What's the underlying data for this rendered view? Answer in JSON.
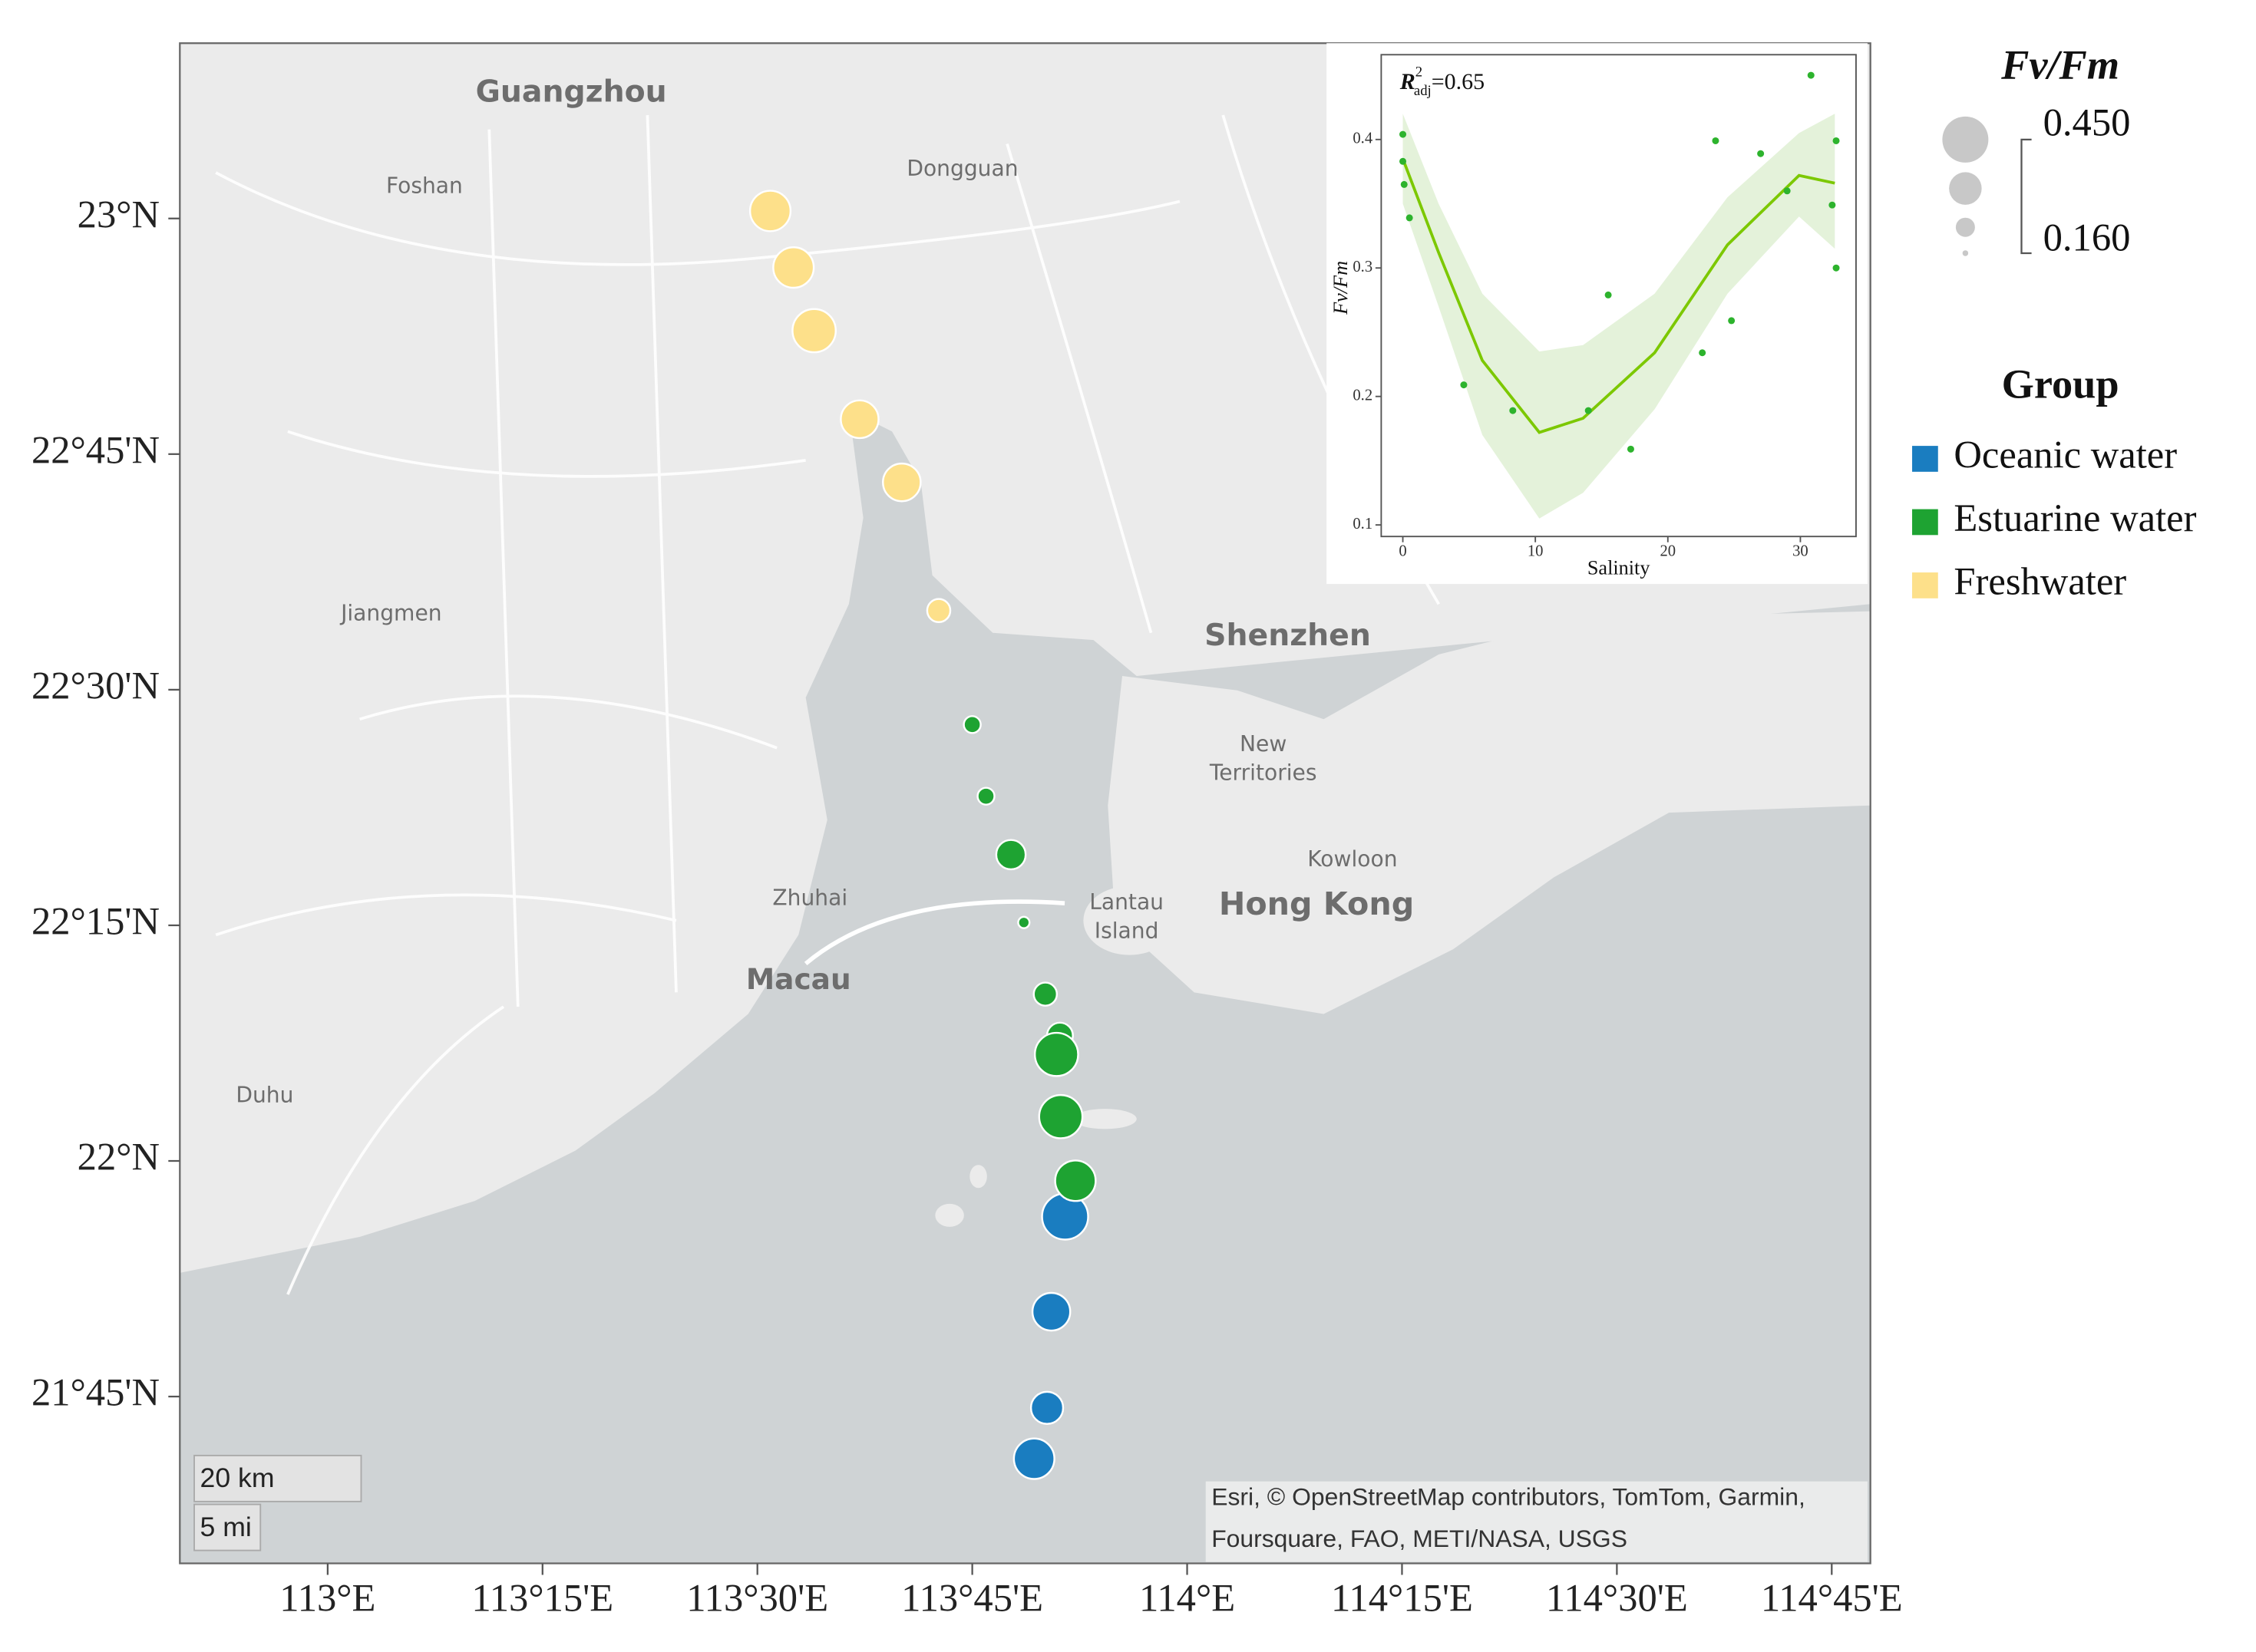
{
  "chart_data": [
    {
      "type": "map-scatter",
      "xlim": [
        112.828,
        114.795
      ],
      "ylim": [
        21.573,
        23.186
      ],
      "xticks": [
        {
          "value": 113,
          "label": "113°E"
        },
        {
          "value": 113.25,
          "label": "113°15'E"
        },
        {
          "value": 113.5,
          "label": "113°30'E"
        },
        {
          "value": 113.75,
          "label": "113°45'E"
        },
        {
          "value": 114,
          "label": "114°E"
        },
        {
          "value": 114.25,
          "label": "114°15'E"
        },
        {
          "value": 114.5,
          "label": "114°30'E"
        },
        {
          "value": 114.75,
          "label": "114°45'E"
        }
      ],
      "yticks": [
        {
          "value": 23,
          "label": "23°N"
        },
        {
          "value": 22.75,
          "label": "22°45'N"
        },
        {
          "value": 22.5,
          "label": "22°30'N"
        },
        {
          "value": 22.25,
          "label": "22°15'N"
        },
        {
          "value": 22,
          "label": "22°N"
        },
        {
          "value": 21.75,
          "label": "21°45'N"
        }
      ],
      "size_legend": {
        "title": "Fv/Fm",
        "ticks": [
          {
            "value": 0.45,
            "label": "0.450"
          },
          {
            "value": 0.16,
            "label": "0.160"
          }
        ]
      },
      "legend_title": "Group",
      "series": [
        {
          "name": "Oceanic water",
          "color": "#1a7dc0",
          "x": [
            113.858,
            113.842,
            113.837,
            113.822
          ],
          "y": [
            21.941,
            21.84,
            21.738,
            21.684
          ],
          "sizes": [
            0.45,
            0.39,
            0.35,
            0.41
          ]
        },
        {
          "name": "Estuarine water",
          "color": "#1ea332",
          "x": [
            113.75,
            113.766,
            113.795,
            113.81,
            113.835,
            113.852,
            113.848,
            113.853,
            113.87
          ],
          "y": [
            22.463,
            22.387,
            22.325,
            22.253,
            22.177,
            22.133,
            22.113,
            22.047,
            21.979
          ],
          "sizes": [
            0.24,
            0.24,
            0.33,
            0.2,
            0.285,
            0.305,
            0.43,
            0.43,
            0.41
          ]
        },
        {
          "name": "Freshwater",
          "color": "#fde08a",
          "x": [
            113.515,
            113.542,
            113.566,
            113.619,
            113.668,
            113.711
          ],
          "y": [
            23.008,
            22.948,
            22.881,
            22.787,
            22.72,
            22.584
          ],
          "sizes": [
            0.41,
            0.41,
            0.43,
            0.39,
            0.39,
            0.285
          ]
        }
      ],
      "place_labels": [
        "Guangzhou",
        "Foshan",
        "Dongguan",
        "Jiangmen",
        "Shenzhen",
        "New",
        "Territories",
        "Kowloon",
        "Hong Kong",
        "Zhuhai",
        "Lantau",
        "Island",
        "Macau",
        "Duhu"
      ],
      "scale_bar": [
        "20 km",
        "5 mi"
      ],
      "attribution": [
        "Esri, © OpenStreetMap contributors, TomTom, Garmin,",
        "Foursquare, FAO, METI/NASA, USGS"
      ]
    },
    {
      "type": "scatter",
      "xlabel": "Salinity",
      "ylabel": "Fv/Fm",
      "annotation": {
        "symbol": "R",
        "superscript": "2",
        "subscript": "adj",
        "text": "=0.65"
      },
      "xlim": [
        -1.63,
        34.2
      ],
      "ylim": [
        0.091,
        0.466
      ],
      "xticks": [
        0,
        10,
        20,
        30
      ],
      "yticks": [
        0.1,
        0.2,
        0.3,
        0.4
      ],
      "point_color": "#2db32d",
      "line_color": "#7cc800",
      "band_color": "#e4f2da",
      "x": [
        0,
        0,
        0.1,
        0.5,
        4.6,
        8.3,
        14.0,
        15.5,
        17.2,
        22.6,
        23.6,
        24.8,
        27.0,
        29.0,
        30.8,
        32.4,
        32.7,
        32.7
      ],
      "values": [
        0.404,
        0.383,
        0.365,
        0.339,
        0.209,
        0.189,
        0.189,
        0.279,
        0.159,
        0.234,
        0.399,
        0.259,
        0.389,
        0.36,
        0.45,
        0.349,
        0.399,
        0.3
      ],
      "fit": {
        "x": [
          0,
          2.7,
          6,
          10.3,
          13.6,
          19,
          24.5,
          29.9,
          32.6
        ],
        "values": [
          0.385,
          0.312,
          0.228,
          0.172,
          0.183,
          0.234,
          0.318,
          0.372,
          0.366
        ],
        "lower": [
          0.35,
          0.27,
          0.17,
          0.105,
          0.125,
          0.19,
          0.28,
          0.34,
          0.315
        ],
        "upper": [
          0.42,
          0.35,
          0.28,
          0.235,
          0.24,
          0.28,
          0.355,
          0.405,
          0.42
        ]
      }
    }
  ]
}
